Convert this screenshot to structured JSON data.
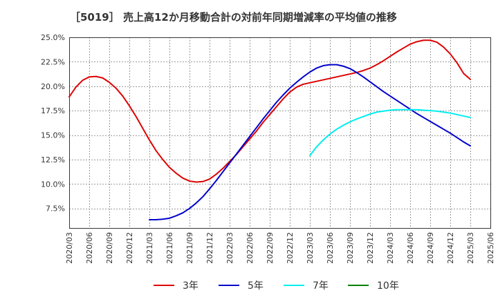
{
  "chart_data": {
    "type": "line",
    "title": "［5019］ 売上高12か月移動合計の対前年同期増減率の平均値の推移",
    "xlabel": "",
    "ylabel": "",
    "x_ticks": [
      "2020/03",
      "2020/06",
      "2020/09",
      "2020/12",
      "2021/03",
      "2021/06",
      "2021/09",
      "2021/12",
      "2022/03",
      "2022/06",
      "2022/09",
      "2022/12",
      "2023/03",
      "2023/06",
      "2023/09",
      "2023/12",
      "2024/03",
      "2024/06",
      "2024/09",
      "2024/12",
      "2025/03",
      "2025/06"
    ],
    "y_ticks": [
      "7.5%",
      "10.0%",
      "12.5%",
      "15.0%",
      "17.5%",
      "20.0%",
      "22.5%",
      "25.0%"
    ],
    "ylim": [
      5.5,
      25.0
    ],
    "grid": true,
    "legend_position": "bottom",
    "series": [
      {
        "name": "3年",
        "color": "#dd0000",
        "x": [
          "2020/03",
          "2020/04",
          "2020/05",
          "2020/06",
          "2020/07",
          "2020/08",
          "2020/09",
          "2020/10",
          "2020/11",
          "2020/12",
          "2021/01",
          "2021/02",
          "2021/03",
          "2021/04",
          "2021/05",
          "2021/06",
          "2021/07",
          "2021/08",
          "2021/09",
          "2021/10",
          "2021/11",
          "2021/12",
          "2022/01",
          "2022/02",
          "2022/03",
          "2022/04",
          "2022/05",
          "2022/06",
          "2022/07",
          "2022/08",
          "2022/09",
          "2022/10",
          "2022/11",
          "2022/12",
          "2023/01",
          "2023/02",
          "2023/03",
          "2023/04",
          "2023/05",
          "2023/06",
          "2023/07",
          "2023/08",
          "2023/09",
          "2023/10",
          "2023/11",
          "2023/12",
          "2024/01",
          "2024/02",
          "2024/03",
          "2024/04",
          "2024/05",
          "2024/06",
          "2024/07",
          "2024/08",
          "2024/09",
          "2024/10",
          "2024/11",
          "2024/12",
          "2025/01",
          "2025/02",
          "2025/03"
        ],
        "values": [
          18.9,
          19.9,
          20.6,
          20.95,
          21.0,
          20.85,
          20.4,
          19.8,
          19.0,
          18.0,
          16.9,
          15.7,
          14.5,
          13.4,
          12.5,
          11.7,
          11.1,
          10.6,
          10.3,
          10.2,
          10.25,
          10.5,
          11.0,
          11.6,
          12.3,
          13.0,
          13.8,
          14.6,
          15.4,
          16.3,
          17.1,
          17.9,
          18.7,
          19.4,
          19.9,
          20.2,
          20.35,
          20.5,
          20.65,
          20.8,
          20.95,
          21.1,
          21.25,
          21.4,
          21.6,
          21.85,
          22.2,
          22.6,
          23.05,
          23.5,
          23.9,
          24.3,
          24.55,
          24.7,
          24.7,
          24.5,
          24.0,
          23.3,
          22.4,
          21.3,
          20.7
        ]
      },
      {
        "name": "5年",
        "color": "#0000cc",
        "x": [
          "2021/03",
          "2021/04",
          "2021/05",
          "2021/06",
          "2021/07",
          "2021/08",
          "2021/09",
          "2021/10",
          "2021/11",
          "2021/12",
          "2022/01",
          "2022/02",
          "2022/03",
          "2022/04",
          "2022/05",
          "2022/06",
          "2022/07",
          "2022/08",
          "2022/09",
          "2022/10",
          "2022/11",
          "2022/12",
          "2023/01",
          "2023/02",
          "2023/03",
          "2023/04",
          "2023/05",
          "2023/06",
          "2023/07",
          "2023/08",
          "2023/09",
          "2023/10",
          "2023/11",
          "2023/12",
          "2024/01",
          "2024/02",
          "2024/03",
          "2024/04",
          "2024/05",
          "2024/06",
          "2024/07",
          "2024/08",
          "2024/09",
          "2024/10",
          "2024/11",
          "2024/12",
          "2025/01",
          "2025/02",
          "2025/03"
        ],
        "values": [
          6.35,
          6.35,
          6.4,
          6.5,
          6.75,
          7.05,
          7.5,
          8.05,
          8.7,
          9.5,
          10.35,
          11.25,
          12.15,
          13.05,
          13.95,
          14.85,
          15.75,
          16.65,
          17.5,
          18.35,
          19.1,
          19.8,
          20.4,
          20.95,
          21.45,
          21.85,
          22.1,
          22.2,
          22.2,
          22.05,
          21.8,
          21.4,
          20.95,
          20.45,
          19.95,
          19.45,
          19.0,
          18.55,
          18.1,
          17.65,
          17.2,
          16.8,
          16.4,
          16.0,
          15.6,
          15.2,
          14.75,
          14.3,
          13.9
        ]
      },
      {
        "name": "7年",
        "color": "#00eeee",
        "x": [
          "2023/03",
          "2023/04",
          "2023/05",
          "2023/06",
          "2023/07",
          "2023/08",
          "2023/09",
          "2023/10",
          "2023/11",
          "2023/12",
          "2024/01",
          "2024/02",
          "2024/03",
          "2024/04",
          "2024/05",
          "2024/06",
          "2024/07",
          "2024/08",
          "2024/09",
          "2024/10",
          "2024/11",
          "2024/12",
          "2025/01",
          "2025/02",
          "2025/03"
        ],
        "values": [
          12.9,
          13.8,
          14.5,
          15.1,
          15.6,
          16.0,
          16.35,
          16.65,
          16.9,
          17.15,
          17.35,
          17.45,
          17.55,
          17.6,
          17.6,
          17.6,
          17.6,
          17.55,
          17.5,
          17.45,
          17.35,
          17.25,
          17.1,
          16.95,
          16.8
        ]
      },
      {
        "name": "10年",
        "color": "#008000",
        "x": [],
        "values": []
      }
    ]
  }
}
